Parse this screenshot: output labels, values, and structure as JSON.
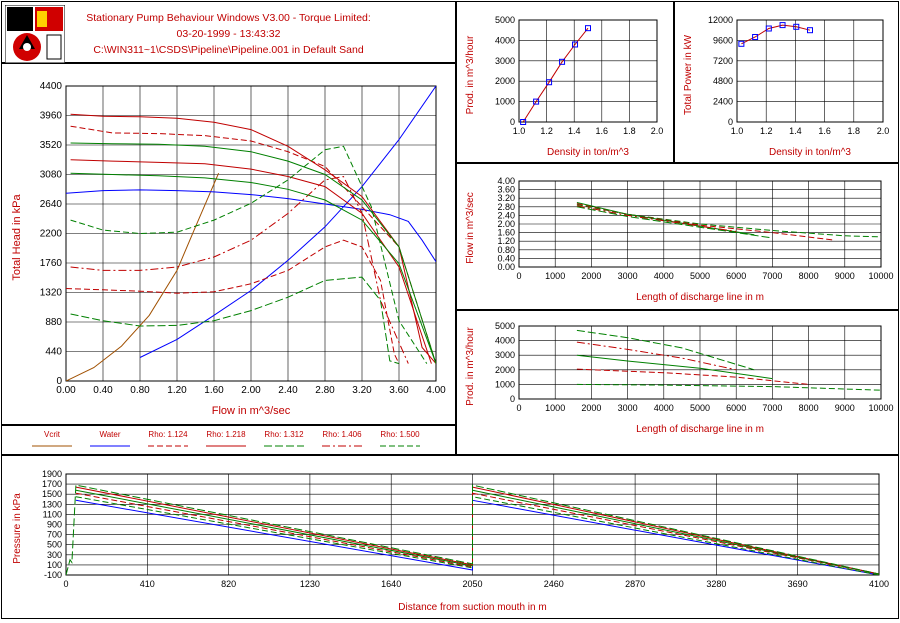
{
  "header": {
    "title": "Stationary Pump Behaviour Windows V3.00 - Torque Limited:",
    "datetime": "03-20-1999 - 13:43:32",
    "path": "C:\\WIN311~1\\CSDS\\Pipeline\\Pipeline.001 in Default Sand"
  },
  "legend": {
    "items": [
      "Vcrit",
      "Water",
      "Rho: 1.124",
      "Rho: 1.218",
      "Rho: 1.312",
      "Rho: 1.406",
      "Rho: 1.500"
    ]
  },
  "colors": {
    "red": "#c00000",
    "green": "#008000",
    "blue": "#0000ff",
    "brown": "#a05000",
    "grid": "#000000",
    "text": "#c00000"
  },
  "chart_data": [
    {
      "id": "main",
      "type": "line",
      "xlabel": "Flow in m^3/sec",
      "ylabel": "Total Head in kPa",
      "xlim": [
        0,
        4
      ],
      "ylim": [
        0,
        4400
      ],
      "xticks": [
        "0.00",
        "0.40",
        "0.80",
        "1.20",
        "1.60",
        "2.00",
        "2.40",
        "2.80",
        "3.20",
        "3.60",
        "4.00"
      ],
      "yticks": [
        "0",
        "440",
        "880",
        "1320",
        "1760",
        "2200",
        "2640",
        "3080",
        "3520",
        "3960",
        "4400"
      ],
      "series": [
        {
          "name": "Vcrit",
          "color": "brown",
          "dash": "",
          "x": [
            0,
            0.3,
            0.6,
            0.9,
            1.2,
            1.4,
            1.65
          ],
          "y": [
            0,
            200,
            520,
            980,
            1650,
            2300,
            3100
          ]
        },
        {
          "name": "Water",
          "color": "blue",
          "dash": "",
          "x": [
            0.8,
            1.2,
            1.6,
            2.0,
            2.4,
            2.8,
            3.2,
            3.6,
            4.0
          ],
          "y": [
            350,
            620,
            980,
            1350,
            1800,
            2300,
            2900,
            3600,
            4400
          ]
        },
        {
          "name": "Water",
          "color": "blue",
          "dash": "",
          "x": [
            0,
            0.4,
            0.8,
            1.2,
            1.6,
            2.0,
            2.4,
            2.8,
            3.2,
            3.5,
            3.7,
            3.85,
            4.0
          ],
          "y": [
            2800,
            2840,
            2850,
            2840,
            2820,
            2780,
            2720,
            2640,
            2560,
            2480,
            2380,
            2100,
            1780
          ]
        },
        {
          "name": "Rho: 1.124",
          "color": "red",
          "dash": "6,3",
          "x": [
            0,
            0.4,
            0.8,
            1.2,
            1.6,
            2.0,
            2.4,
            2.8,
            3.0,
            3.2,
            3.4,
            3.55,
            3.6
          ],
          "y": [
            1380,
            1360,
            1340,
            1310,
            1330,
            1450,
            1650,
            2000,
            2100,
            2000,
            1500,
            400,
            260
          ]
        },
        {
          "name": "Rho: 1.124",
          "color": "red",
          "dash": "6,3",
          "x": [
            0.05,
            0.5,
            1.0,
            1.5,
            2.0,
            2.4,
            2.8,
            3.2,
            3.6,
            4.0
          ],
          "y": [
            3800,
            3700,
            3690,
            3660,
            3580,
            3420,
            3200,
            2600,
            2000,
            260
          ]
        },
        {
          "name": "Rho: 1.218",
          "color": "red",
          "dash": "",
          "x": [
            0.05,
            0.4,
            0.8,
            1.2,
            1.6,
            2.0,
            2.4,
            2.8,
            3.2,
            3.6,
            3.85,
            4.0
          ],
          "y": [
            3980,
            3950,
            3940,
            3920,
            3860,
            3750,
            3500,
            3150,
            2750,
            2000,
            500,
            260
          ]
        },
        {
          "name": "Rho: 1.312",
          "color": "green",
          "dash": "8,3",
          "x": [
            0.05,
            0.4,
            0.8,
            1.2,
            1.6,
            2.0,
            2.4,
            2.8,
            3.2,
            3.4,
            3.5,
            3.6
          ],
          "y": [
            1000,
            900,
            820,
            830,
            900,
            1050,
            1250,
            1500,
            1550,
            1200,
            300,
            260
          ]
        },
        {
          "name": "Rho: 1.312",
          "color": "green",
          "dash": "",
          "x": [
            0.05,
            0.5,
            1.0,
            1.5,
            2.0,
            2.4,
            2.8,
            3.2,
            3.6,
            4.0
          ],
          "y": [
            3550,
            3540,
            3530,
            3500,
            3420,
            3280,
            3080,
            2700,
            2000,
            260
          ]
        },
        {
          "name": "Rho: 1.406",
          "color": "red",
          "dash": "8,3,2,3",
          "x": [
            0.05,
            0.4,
            0.8,
            1.2,
            1.6,
            2.0,
            2.4,
            2.8,
            3.0,
            3.2,
            3.4,
            3.7
          ],
          "y": [
            1700,
            1650,
            1650,
            1700,
            1850,
            2100,
            2500,
            3000,
            3050,
            2500,
            1200,
            260
          ]
        },
        {
          "name": "Rho: 1.406",
          "color": "red",
          "dash": "",
          "x": [
            0.05,
            0.5,
            1.0,
            1.5,
            2.0,
            2.4,
            2.8,
            3.2,
            3.6,
            3.95
          ],
          "y": [
            3300,
            3280,
            3260,
            3240,
            3160,
            3050,
            2900,
            2500,
            1700,
            260
          ]
        },
        {
          "name": "Rho: 1.500",
          "color": "green",
          "dash": "6,3",
          "x": [
            0.05,
            0.4,
            0.8,
            1.2,
            1.6,
            2.0,
            2.4,
            2.8,
            3.0,
            3.3,
            3.6,
            3.9
          ],
          "y": [
            2400,
            2250,
            2200,
            2220,
            2400,
            2650,
            3000,
            3450,
            3500,
            2600,
            900,
            260
          ]
        },
        {
          "name": "Rho: 1.500",
          "color": "green",
          "dash": "",
          "x": [
            0.05,
            0.5,
            1.0,
            1.5,
            2.0,
            2.4,
            2.8,
            3.2,
            3.6,
            4.0
          ],
          "y": [
            3100,
            3080,
            3060,
            3030,
            2960,
            2860,
            2700,
            2400,
            1750,
            260
          ]
        }
      ]
    },
    {
      "id": "prod_density",
      "type": "line",
      "xlabel": "Density in ton/m^3",
      "ylabel": "Prod. in m^3/hour",
      "xlim": [
        1.0,
        2.0
      ],
      "ylim": [
        0,
        5000
      ],
      "xticks": [
        "1.0",
        "1.2",
        "1.4",
        "1.6",
        "1.8",
        "2.0"
      ],
      "yticks": [
        "0",
        "1000",
        "2000",
        "3000",
        "4000",
        "5000"
      ],
      "series": [
        {
          "name": "",
          "color": "red",
          "markers": true,
          "x": [
            1.03,
            1.124,
            1.218,
            1.312,
            1.406,
            1.5
          ],
          "y": [
            0,
            1000,
            1950,
            2950,
            3800,
            4600
          ]
        }
      ]
    },
    {
      "id": "power_density",
      "type": "line",
      "xlabel": "Density in ton/m^3",
      "ylabel": "Total Power in kW",
      "xlim": [
        1.0,
        2.0
      ],
      "ylim": [
        0,
        12000
      ],
      "xticks": [
        "1.0",
        "1.2",
        "1.4",
        "1.6",
        "1.8",
        "2.0"
      ],
      "yticks": [
        "0",
        "2400",
        "4800",
        "7200",
        "9600",
        "12000"
      ],
      "series": [
        {
          "name": "",
          "color": "red",
          "markers": true,
          "x": [
            1.03,
            1.124,
            1.218,
            1.312,
            1.406,
            1.5
          ],
          "y": [
            9200,
            10000,
            11000,
            11400,
            11200,
            10800
          ]
        }
      ]
    },
    {
      "id": "flow_length",
      "type": "line",
      "xlabel": "Length of discharge line in m",
      "ylabel": "Flow in m^3/sec",
      "xlim": [
        0,
        10000
      ],
      "ylim": [
        0,
        4
      ],
      "xticks": [
        "0",
        "1000",
        "2000",
        "3000",
        "4000",
        "5000",
        "6000",
        "7000",
        "8000",
        "9000",
        "10000"
      ],
      "yticks": [
        "0.00",
        "0.40",
        "0.80",
        "1.20",
        "1.60",
        "2.00",
        "2.40",
        "2.80",
        "3.20",
        "3.60",
        "4.00"
      ],
      "series": [
        {
          "name": "Rho: 1.124",
          "color": "green",
          "dash": "6,3",
          "x": [
            1600,
            3000,
            5000,
            7000,
            9000,
            10000
          ],
          "y": [
            2.9,
            2.45,
            2.0,
            1.7,
            1.45,
            1.4
          ]
        },
        {
          "name": "Rho: 1.218",
          "color": "red",
          "dash": "6,3",
          "x": [
            1600,
            3000,
            5000,
            7000,
            8700
          ],
          "y": [
            2.95,
            2.45,
            1.95,
            1.6,
            1.25
          ]
        },
        {
          "name": "Rho: 1.312",
          "color": "green",
          "dash": "",
          "x": [
            1600,
            3000,
            5000,
            6500
          ],
          "y": [
            3.0,
            2.45,
            1.9,
            1.5
          ]
        },
        {
          "name": "Rho: 1.406",
          "color": "red",
          "dash": "8,3,2,3",
          "x": [
            1600,
            3000,
            5000,
            6000
          ],
          "y": [
            2.85,
            2.4,
            1.9,
            1.65
          ]
        },
        {
          "name": "Rho: 1.500",
          "color": "green",
          "dash": "8,3",
          "x": [
            1600,
            3000,
            5000,
            7000
          ],
          "y": [
            2.8,
            2.35,
            1.85,
            1.35
          ]
        }
      ]
    },
    {
      "id": "prod_length",
      "type": "line",
      "xlabel": "Length of discharge line in m",
      "ylabel": "Prod. in m^3/hour",
      "xlim": [
        0,
        10000
      ],
      "ylim": [
        0,
        5000
      ],
      "xticks": [
        "0",
        "1000",
        "2000",
        "3000",
        "4000",
        "5000",
        "6000",
        "7000",
        "8000",
        "9000",
        "10000"
      ],
      "yticks": [
        "0",
        "1000",
        "2000",
        "3000",
        "4000",
        "5000"
      ],
      "series": [
        {
          "name": "Rho: 1.124",
          "color": "green",
          "dash": "6,3",
          "x": [
            1600,
            4000,
            7000,
            10000
          ],
          "y": [
            1000,
            950,
            850,
            600
          ]
        },
        {
          "name": "Rho: 1.218",
          "color": "red",
          "dash": "6,3",
          "x": [
            1600,
            4000,
            6000,
            8000
          ],
          "y": [
            2050,
            1800,
            1500,
            1000
          ]
        },
        {
          "name": "Rho: 1.312",
          "color": "green",
          "dash": "",
          "x": [
            1600,
            3000,
            5000,
            7000
          ],
          "y": [
            3000,
            2600,
            2100,
            1400
          ]
        },
        {
          "name": "Rho: 1.406",
          "color": "red",
          "dash": "8,3,2,3",
          "x": [
            1600,
            3000,
            4500,
            6000
          ],
          "y": [
            3900,
            3400,
            2800,
            2000
          ]
        },
        {
          "name": "Rho: 1.500",
          "color": "green",
          "dash": "8,3",
          "x": [
            1600,
            3000,
            4500,
            6500
          ],
          "y": [
            4700,
            4200,
            3500,
            2000
          ]
        }
      ]
    },
    {
      "id": "pressure_distance",
      "type": "line",
      "xlabel": "Distance from suction mouth in m",
      "ylabel": "Pressure in kPa",
      "xlim": [
        0,
        4100
      ],
      "ylim": [
        -100,
        1900
      ],
      "xticks": [
        "0",
        "410",
        "820",
        "1230",
        "1640",
        "2050",
        "2460",
        "2870",
        "3280",
        "3690",
        "4100"
      ],
      "yticks": [
        "-100",
        "100",
        "300",
        "500",
        "700",
        "900",
        "1100",
        "1300",
        "1500",
        "1700",
        "1900"
      ],
      "series": [
        {
          "name": "Water",
          "color": "blue",
          "dash": "",
          "x": [
            50,
            2050,
            2050,
            4100
          ],
          "y": [
            1380,
            0,
            1380,
            -100
          ]
        },
        {
          "name": "Rho: 1.124",
          "color": "green",
          "dash": "6,3",
          "x": [
            50,
            2050,
            2050,
            4100
          ],
          "y": [
            1450,
            40,
            1450,
            -100
          ]
        },
        {
          "name": "Rho: 1.218",
          "color": "red",
          "dash": "6,3",
          "x": [
            50,
            2050,
            2050,
            4100
          ],
          "y": [
            1520,
            60,
            1520,
            -80
          ]
        },
        {
          "name": "Rho: 1.312",
          "color": "green",
          "dash": "",
          "x": [
            50,
            2050,
            2050,
            4100
          ],
          "y": [
            1580,
            80,
            1580,
            -80
          ]
        },
        {
          "name": "Rho: 1.406",
          "color": "red",
          "dash": "",
          "x": [
            50,
            2050,
            2050,
            4100
          ],
          "y": [
            1640,
            100,
            1640,
            -80
          ]
        },
        {
          "name": "Rho: 1.500",
          "color": "green",
          "dash": "8,3",
          "x": [
            0,
            20,
            30,
            50,
            2050,
            2050,
            4100
          ],
          "y": [
            -100,
            200,
            150,
            1680,
            120,
            1680,
            -80
          ]
        }
      ]
    }
  ]
}
